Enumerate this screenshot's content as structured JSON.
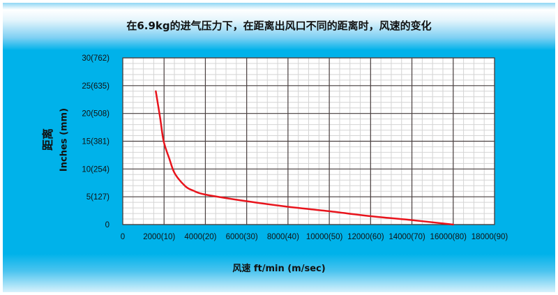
{
  "chart_data": {
    "type": "line",
    "title": "在6.9kg的进气压力下，在距离出风口不同的距离时，风速的变化",
    "xlabel": "风速 ft/min (m/sec)",
    "ylabel_cn": "距离",
    "ylabel": "Inches (mm)",
    "xlim": [
      0,
      18000
    ],
    "ylim": [
      0,
      30
    ],
    "grid": true,
    "x_ticks": [
      0,
      2000,
      4000,
      6000,
      8000,
      10000,
      12000,
      14000,
      16000,
      18000
    ],
    "x_tick_labels": [
      "0",
      "2000(10)",
      "4000(20)",
      "6000(30)",
      "8000(40)",
      "10000(50)",
      "12000(60)",
      "14000(70)",
      "16000(80)",
      "18000(90)"
    ],
    "y_ticks": [
      0,
      5,
      10,
      15,
      20,
      25,
      30
    ],
    "y_tick_labels": [
      "0",
      "5(127)",
      "10(254)",
      "15(381)",
      "20(508)",
      "25(635)",
      "30(762)"
    ],
    "series": [
      {
        "color": "#e8141c",
        "x": [
          1600,
          1810,
          1980,
          2260,
          2520,
          3030,
          3420,
          4000,
          6000,
          8000,
          10000,
          12000,
          14000,
          16000
        ],
        "y": [
          24,
          19.2,
          15,
          11.8,
          9.2,
          6.9,
          6.1,
          5.4,
          4.2,
          3.2,
          2.4,
          1.5,
          0.8,
          0
        ]
      }
    ]
  }
}
